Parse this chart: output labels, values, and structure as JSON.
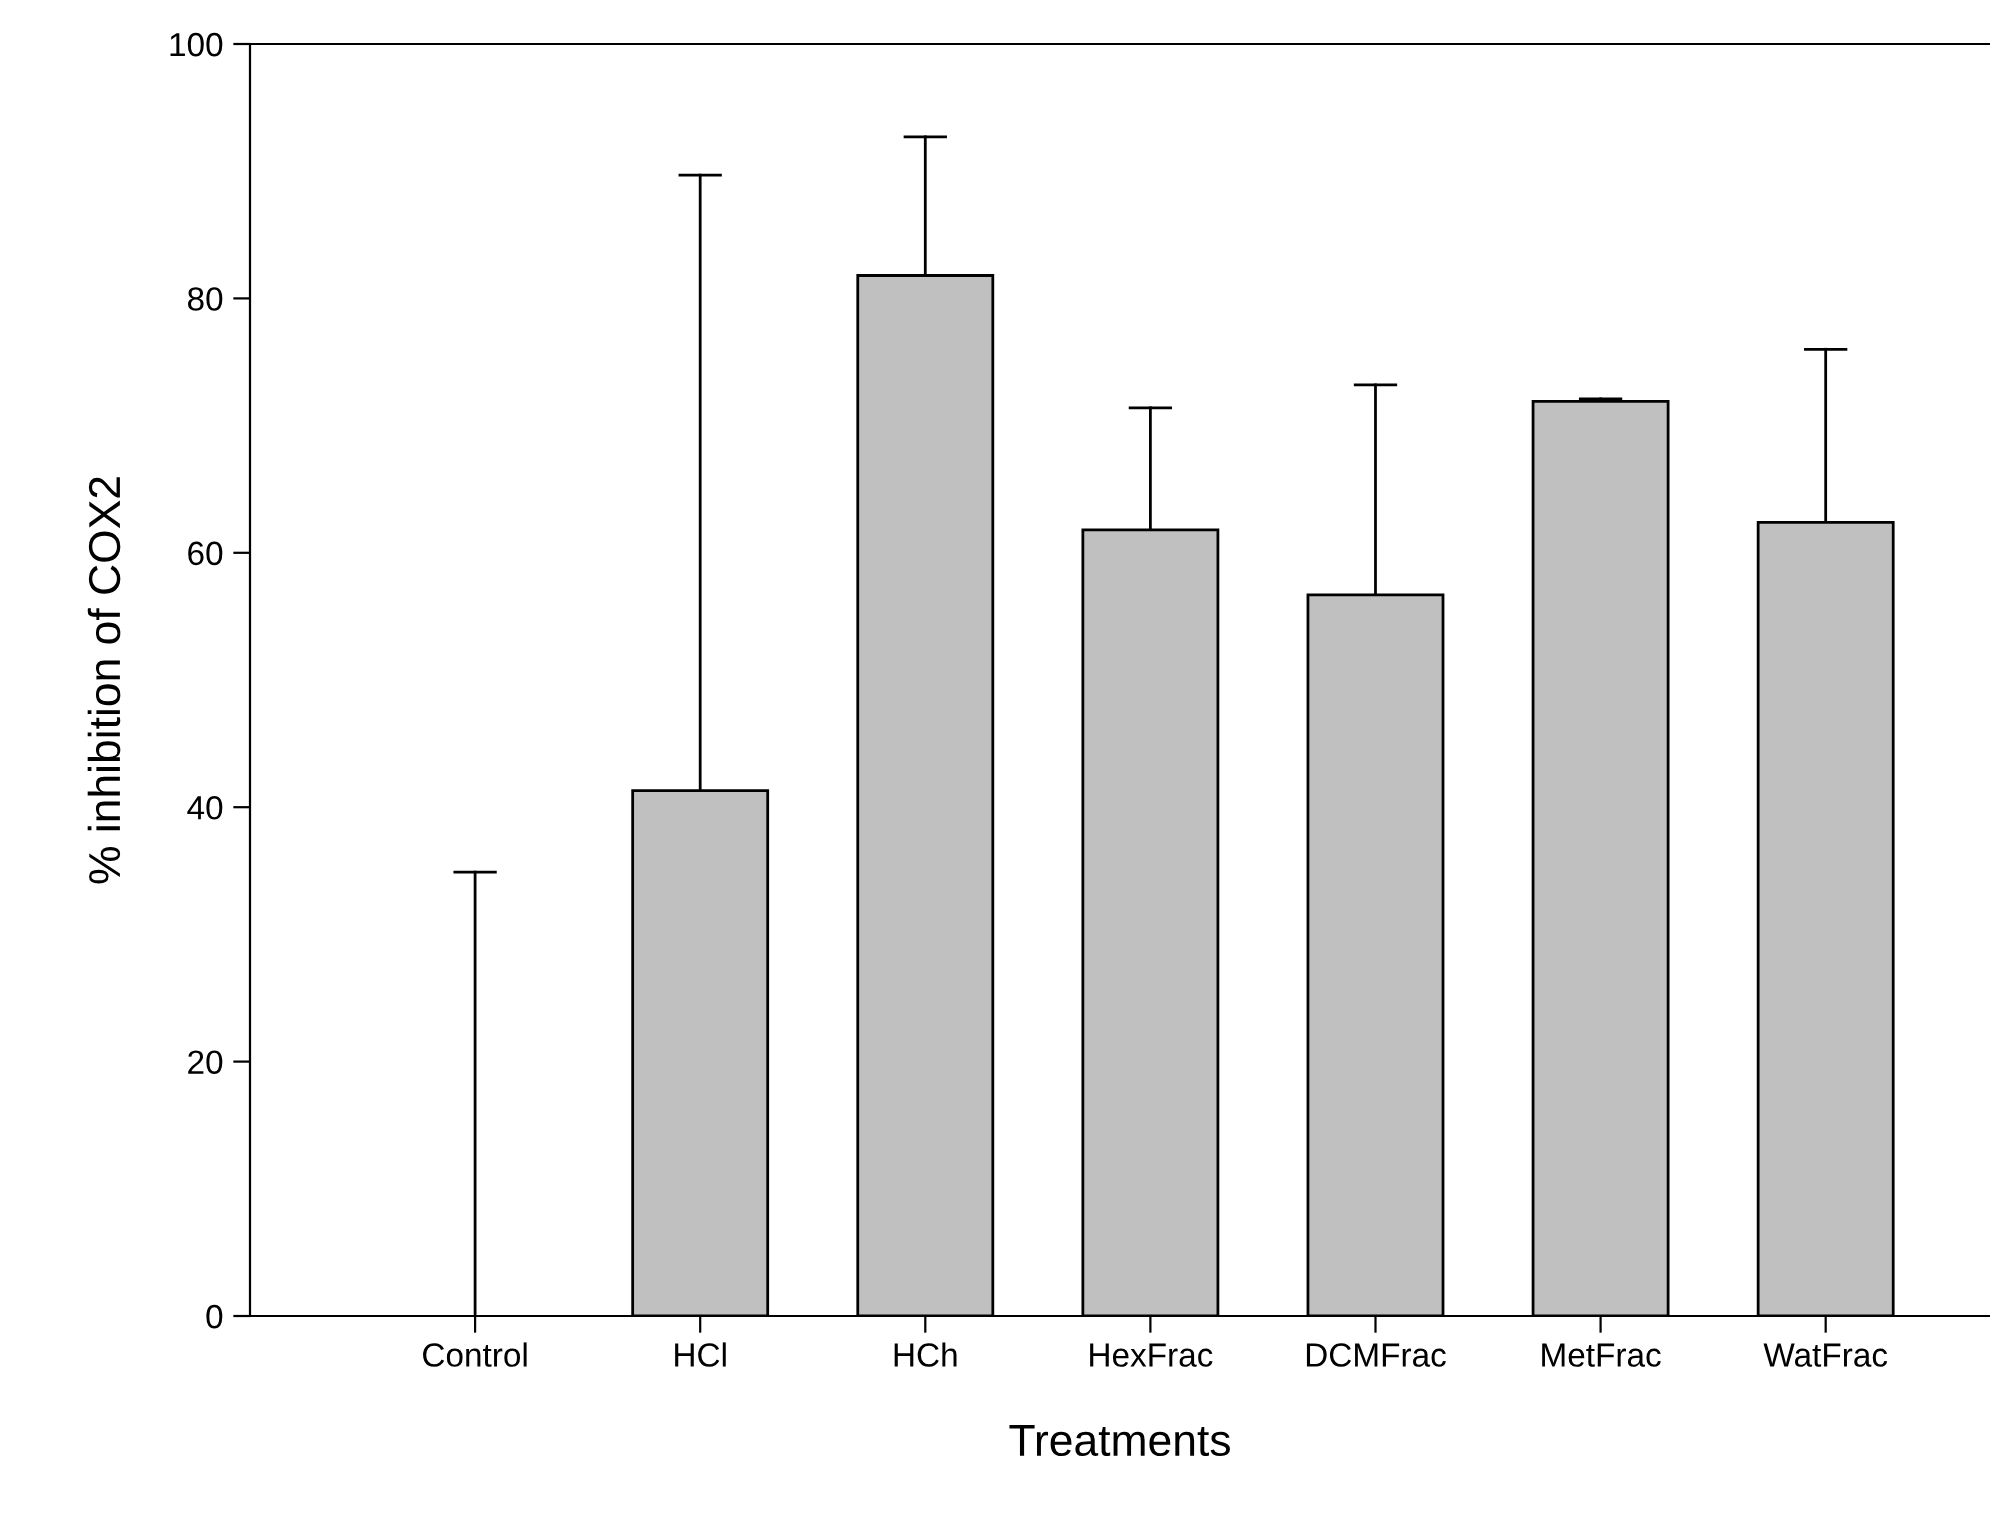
{
  "chart_data": {
    "type": "bar",
    "xlabel": "Treatments",
    "ylabel": "% inhibition of COX2",
    "categories": [
      "Control",
      "HCl",
      "HCh",
      "HexFrac",
      "DCMFrac",
      "MetFrac",
      "WatFrac"
    ],
    "values": [
      0,
      41.3,
      81.8,
      61.8,
      56.7,
      71.9,
      62.4
    ],
    "errors": [
      [
        0,
        34.9
      ],
      [
        41.3,
        89.7
      ],
      [
        81.8,
        92.7
      ],
      [
        61.8,
        71.4
      ],
      [
        56.7,
        73.2
      ],
      [
        71.9,
        72.1
      ],
      [
        62.4,
        76.0
      ]
    ],
    "color": "#c0c0c0",
    "ylim": [
      0,
      100
    ],
    "yticks": [
      0,
      20,
      40,
      60,
      80,
      100
    ],
    "grid": false,
    "legend": false
  }
}
